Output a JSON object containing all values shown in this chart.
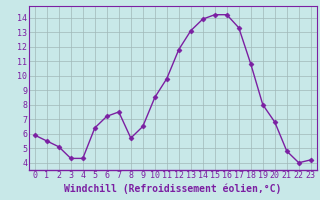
{
  "x": [
    0,
    1,
    2,
    3,
    4,
    5,
    6,
    7,
    8,
    9,
    10,
    11,
    12,
    13,
    14,
    15,
    16,
    17,
    18,
    19,
    20,
    21,
    22,
    23
  ],
  "y": [
    5.9,
    5.5,
    5.1,
    4.3,
    4.3,
    6.4,
    7.2,
    7.5,
    5.7,
    6.5,
    8.5,
    9.8,
    11.8,
    13.1,
    13.9,
    14.2,
    14.2,
    13.3,
    10.8,
    8.0,
    6.8,
    4.8,
    4.0,
    4.2
  ],
  "line_color": "#7b1fa2",
  "marker": "D",
  "marker_size": 2.5,
  "line_width": 1.0,
  "bg_color": "#c8e8e8",
  "grid_color": "#a0b8b8",
  "xlabel": "Windchill (Refroidissement éolien,°C)",
  "xlabel_fontsize": 7,
  "tick_fontsize": 6,
  "ylim": [
    3.5,
    14.8
  ],
  "xlim": [
    -0.5,
    23.5
  ],
  "yticks": [
    4,
    5,
    6,
    7,
    8,
    9,
    10,
    11,
    12,
    13,
    14
  ],
  "xticks": [
    0,
    1,
    2,
    3,
    4,
    5,
    6,
    7,
    8,
    9,
    10,
    11,
    12,
    13,
    14,
    15,
    16,
    17,
    18,
    19,
    20,
    21,
    22,
    23
  ],
  "spine_color": "#7b1fa2"
}
